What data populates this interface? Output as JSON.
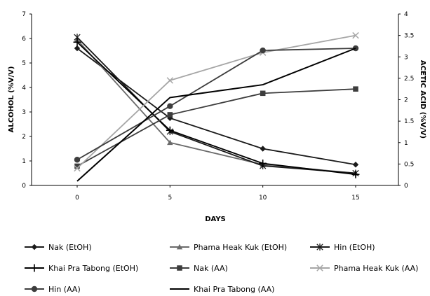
{
  "chart_data": {
    "type": "line",
    "xlabel": "DAYS",
    "ylabel_left": "ALCOHOL (%V/V)",
    "ylabel_right": "ACETIC ACID (%V/V)",
    "x": [
      0,
      5,
      10,
      15
    ],
    "x_ticks": [
      "0",
      "5",
      "10",
      "15"
    ],
    "ylim_left": [
      0,
      7
    ],
    "y_ticks_left": [
      "0",
      "1",
      "2",
      "3",
      "4",
      "5",
      "6",
      "7"
    ],
    "ylim_right": [
      0,
      4
    ],
    "y_ticks_right": [
      "0",
      "0.5",
      "1",
      "1.5",
      "2",
      "2.5",
      "3",
      "3.5",
      "4"
    ],
    "grid": false,
    "legend_position": "bottom",
    "series": [
      {
        "name": "Nak (EtOH)",
        "axis": "left",
        "marker": "diamond",
        "color": "#1a1a1a",
        "values": [
          5.6,
          2.75,
          1.5,
          0.85
        ]
      },
      {
        "name": "Phama Heak Kuk (EtOH)",
        "axis": "left",
        "marker": "triangle",
        "color": "#6b6b6b",
        "values": [
          5.95,
          1.75,
          0.85,
          0.5
        ]
      },
      {
        "name": "Hin (EtOH)",
        "axis": "left",
        "marker": "asterisk",
        "color": "#1a1a1a",
        "values": [
          6.05,
          2.2,
          0.8,
          0.5
        ]
      },
      {
        "name": "Khai Pra Tabong (EtOH)",
        "axis": "left",
        "marker": "plus",
        "color": "#000000",
        "values": [
          5.85,
          2.25,
          0.9,
          0.45
        ]
      },
      {
        "name": "Nak (AA)",
        "axis": "right",
        "marker": "square",
        "color": "#3d3d3d",
        "values": [
          0.45,
          1.65,
          2.15,
          2.25
        ]
      },
      {
        "name": "Phama Heak Kuk (AA)",
        "axis": "right",
        "marker": "x",
        "color": "#a6a6a6",
        "values": [
          0.4,
          2.45,
          3.1,
          3.5
        ]
      },
      {
        "name": "Hin (AA)",
        "axis": "right",
        "marker": "circle",
        "color": "#3d3d3d",
        "values": [
          0.6,
          1.85,
          3.15,
          3.2
        ]
      },
      {
        "name": "Khai Pra Tabong (AA)",
        "axis": "right",
        "marker": "none",
        "color": "#000000",
        "values": [
          0.1,
          2.05,
          2.35,
          3.2
        ]
      }
    ]
  }
}
